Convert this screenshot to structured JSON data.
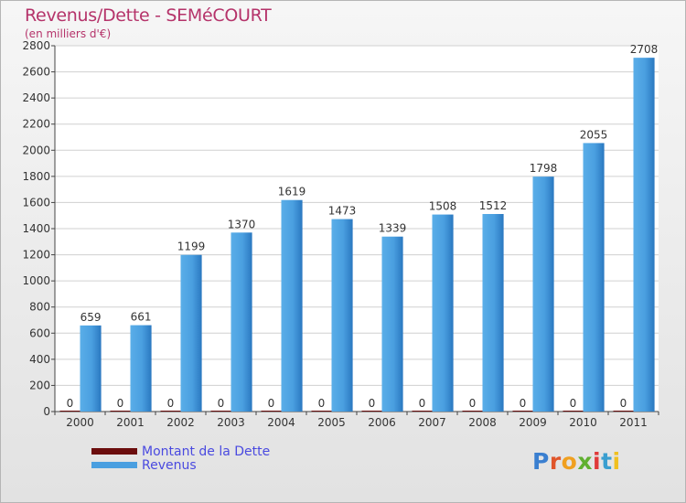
{
  "chart_data": {
    "type": "bar",
    "title": "Revenus/Dette - SEMéCOURT",
    "subtitle": "(en milliers d'€)",
    "categories": [
      "2000",
      "2001",
      "2002",
      "2003",
      "2004",
      "2005",
      "2006",
      "2007",
      "2008",
      "2009",
      "2010",
      "2011"
    ],
    "series": [
      {
        "name": "Montant de la Dette",
        "color": "#6b0d0d",
        "values": [
          0,
          0,
          0,
          0,
          0,
          0,
          0,
          0,
          0,
          0,
          0,
          0
        ]
      },
      {
        "name": "Revenus",
        "color": "#4a9fe0",
        "values": [
          659,
          661,
          1199,
          1370,
          1619,
          1473,
          1339,
          1508,
          1512,
          1798,
          2055,
          2708
        ]
      }
    ],
    "ylim": [
      0,
      2800
    ],
    "yticks": [
      0,
      200,
      400,
      600,
      800,
      1000,
      1200,
      1400,
      1600,
      1800,
      2000,
      2200,
      2400,
      2600,
      2800
    ],
    "grid": true,
    "legend": "bottom-left"
  },
  "logo": {
    "text": "Proxiti"
  }
}
